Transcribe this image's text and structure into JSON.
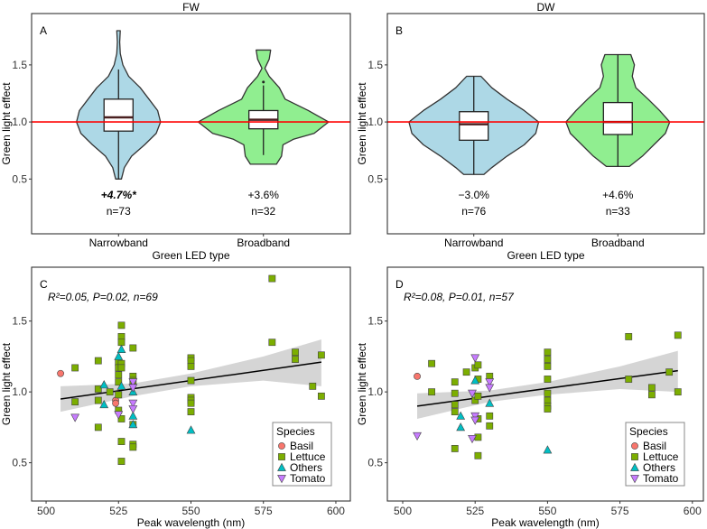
{
  "chart_data": [
    {
      "panel": "A",
      "type": "violin",
      "title": "FW",
      "panel_label": "A",
      "xlabel": "Green LED type",
      "ylabel": "Green light effect",
      "categories": [
        "Narrowband",
        "Broadband"
      ],
      "ylim": [
        0.02,
        1.95
      ],
      "yticks": [
        0.5,
        1.0,
        1.5
      ],
      "ytick_labels": [
        "0.5",
        "1.0",
        "1.5"
      ],
      "reference_line": 1.0,
      "reference_color": "#ff0000",
      "groups": [
        {
          "category": "Narrowband",
          "fill": "#add8e6",
          "annotation": "+4.7%*",
          "annotation_bold": true,
          "n_label": "n=73",
          "box": {
            "q1": 0.92,
            "median": 1.04,
            "q3": 1.2,
            "whisker_low": 0.5,
            "whisker_high": 1.46
          },
          "outliers": [],
          "density": [
            [
              0.5,
              0.02
            ],
            [
              0.6,
              0.04
            ],
            [
              0.7,
              0.09
            ],
            [
              0.8,
              0.18
            ],
            [
              0.9,
              0.26
            ],
            [
              1.0,
              0.29
            ],
            [
              1.1,
              0.27
            ],
            [
              1.2,
              0.21
            ],
            [
              1.3,
              0.15
            ],
            [
              1.4,
              0.07
            ],
            [
              1.5,
              0.03
            ],
            [
              1.6,
              0.012
            ],
            [
              1.7,
              0.008
            ],
            [
              1.8,
              0.012
            ]
          ]
        },
        {
          "category": "Broadband",
          "fill": "#90ee90",
          "annotation": "+3.6%",
          "annotation_bold": false,
          "n_label": "n=32",
          "box": {
            "q1": 0.94,
            "median": 1.02,
            "q3": 1.1,
            "whisker_low": 0.71,
            "whisker_high": 1.32
          },
          "outliers": [
            1.35
          ],
          "density": [
            [
              0.63,
              0.09
            ],
            [
              0.7,
              0.125
            ],
            [
              0.8,
              0.135
            ],
            [
              0.85,
              0.21
            ],
            [
              0.9,
              0.35
            ],
            [
              1.0,
              0.45
            ],
            [
              1.1,
              0.31
            ],
            [
              1.2,
              0.15
            ],
            [
              1.3,
              0.11
            ],
            [
              1.4,
              0.04
            ],
            [
              1.47,
              0.01
            ],
            [
              1.55,
              0.04
            ],
            [
              1.63,
              0.05
            ]
          ]
        }
      ]
    },
    {
      "panel": "B",
      "type": "violin",
      "title": "DW",
      "panel_label": "B",
      "xlabel": "Green LED type",
      "ylabel": "Green light effect",
      "categories": [
        "Narrowband",
        "Broadband"
      ],
      "ylim": [
        0.02,
        1.95
      ],
      "yticks": [
        0.5,
        1.0,
        1.5
      ],
      "ytick_labels": [
        "0.5",
        "1.0",
        "1.5"
      ],
      "reference_line": 1.0,
      "reference_color": "#ff0000",
      "groups": [
        {
          "category": "Narrowband",
          "fill": "#add8e6",
          "annotation": "−3.0%",
          "annotation_bold": false,
          "n_label": "n=76",
          "box": {
            "q1": 0.84,
            "median": 0.98,
            "q3": 1.09,
            "whisker_low": 0.54,
            "whisker_high": 1.4
          },
          "outliers": [],
          "density": [
            [
              0.54,
              0.07
            ],
            [
              0.6,
              0.125
            ],
            [
              0.7,
              0.23
            ],
            [
              0.8,
              0.35
            ],
            [
              0.9,
              0.43
            ],
            [
              1.0,
              0.45
            ],
            [
              1.1,
              0.35
            ],
            [
              1.2,
              0.23
            ],
            [
              1.3,
              0.125
            ],
            [
              1.4,
              0.05
            ]
          ]
        },
        {
          "category": "Broadband",
          "fill": "#90ee90",
          "annotation": "+4.6%",
          "annotation_bold": false,
          "n_label": "n=33",
          "box": {
            "q1": 0.89,
            "median": 1.0,
            "q3": 1.17,
            "whisker_low": 0.61,
            "whisker_high": 1.59
          },
          "outliers": [],
          "density": [
            [
              0.61,
              0.08
            ],
            [
              0.7,
              0.17
            ],
            [
              0.8,
              0.25
            ],
            [
              0.9,
              0.33
            ],
            [
              1.0,
              0.36
            ],
            [
              1.1,
              0.29
            ],
            [
              1.2,
              0.21
            ],
            [
              1.3,
              0.125
            ],
            [
              1.4,
              0.1
            ],
            [
              1.5,
              0.115
            ],
            [
              1.59,
              0.09
            ]
          ]
        }
      ]
    },
    {
      "panel": "C",
      "type": "scatter",
      "panel_label": "C",
      "stats_label": "R²=0.05, P=0.02, n=69",
      "xlabel": "Peak wavelength (nm)",
      "ylabel": "Green light effect",
      "xlim": [
        495,
        605
      ],
      "ylim": [
        0.23,
        1.88
      ],
      "xticks": [
        500,
        525,
        550,
        575,
        600
      ],
      "xtick_labels": [
        "500",
        "525",
        "550",
        "575",
        "600"
      ],
      "yticks": [
        0.5,
        1.0,
        1.5
      ],
      "ytick_labels": [
        "0.5",
        "1.0",
        "1.5"
      ],
      "legend": {
        "title": "Species",
        "position": "bottom-right"
      },
      "fit_line": [
        [
          505,
          0.95
        ],
        [
          595,
          1.21
        ]
      ],
      "confidence_band": [
        [
          505,
          0.86,
          1.04
        ],
        [
          530,
          0.97,
          1.06
        ],
        [
          550,
          1.04,
          1.13
        ],
        [
          575,
          1.08,
          1.25
        ],
        [
          595,
          1.04,
          1.37
        ]
      ],
      "series": [
        {
          "name": "Basil",
          "shape": "circle",
          "color": "#f8766d",
          "points": [
            [
              505,
              1.13
            ],
            [
              524,
              0.94
            ],
            [
              524,
              0.92
            ]
          ]
        },
        {
          "name": "Lettuce",
          "shape": "square",
          "color": "#7cae00",
          "points": [
            [
              510,
              1.17
            ],
            [
              510,
              0.93
            ],
            [
              518,
              1.22
            ],
            [
              518,
              1.02
            ],
            [
              518,
              0.94
            ],
            [
              518,
              0.75
            ],
            [
              522,
              1.0
            ],
            [
              525,
              1.21
            ],
            [
              525,
              1.17
            ],
            [
              525,
              1.12
            ],
            [
              525,
              1.07
            ],
            [
              525,
              0.98
            ],
            [
              525,
              0.87
            ],
            [
              526,
              1.47
            ],
            [
              526,
              1.39
            ],
            [
              526,
              1.35
            ],
            [
              526,
              1.2
            ],
            [
              526,
              1.17
            ],
            [
              526,
              0.81
            ],
            [
              526,
              0.65
            ],
            [
              526,
              0.51
            ],
            [
              530,
              1.31
            ],
            [
              530,
              1.11
            ],
            [
              530,
              1.08
            ],
            [
              530,
              0.77
            ],
            [
              530,
              0.63
            ],
            [
              530,
              0.61
            ],
            [
              550,
              1.24
            ],
            [
              550,
              1.22
            ],
            [
              550,
              1.18
            ],
            [
              550,
              1.08
            ],
            [
              550,
              0.96
            ],
            [
              550,
              0.94
            ],
            [
              550,
              0.92
            ],
            [
              550,
              0.86
            ],
            [
              578,
              1.8
            ],
            [
              578,
              1.35
            ],
            [
              586,
              1.28
            ],
            [
              586,
              1.23
            ],
            [
              592,
              1.04
            ],
            [
              595,
              1.26
            ],
            [
              595,
              0.97
            ]
          ]
        },
        {
          "name": "Others",
          "shape": "triangle-up",
          "color": "#00bfc4",
          "points": [
            [
              520,
              1.05
            ],
            [
              520,
              0.91
            ],
            [
              525,
              1.25
            ],
            [
              526,
              1.3
            ],
            [
              526,
              1.04
            ],
            [
              530,
              1.0
            ],
            [
              530,
              0.83
            ],
            [
              530,
              0.77
            ],
            [
              550,
              0.73
            ]
          ]
        },
        {
          "name": "Tomato",
          "shape": "triangle-down",
          "color": "#c77cff",
          "points": [
            [
              510,
              0.82
            ],
            [
              525,
              0.84
            ],
            [
              530,
              1.07
            ],
            [
              530,
              1.03
            ],
            [
              530,
              0.92
            ],
            [
              530,
              0.88
            ]
          ]
        }
      ]
    },
    {
      "panel": "D",
      "type": "scatter",
      "panel_label": "D",
      "stats_label": "R²=0.08, P=0.01, n=57",
      "xlabel": "Peak wavelength (nm)",
      "ylabel": "Green light effect",
      "xlim": [
        494.7,
        603.8
      ],
      "ylim": [
        0.23,
        1.88
      ],
      "xticks": [
        500,
        525,
        550,
        575,
        600
      ],
      "xtick_labels": [
        "500",
        "525",
        "550",
        "575",
        "600"
      ],
      "yticks": [
        0.5,
        1.0,
        1.5
      ],
      "ytick_labels": [
        "0.5",
        "1.0",
        "1.5"
      ],
      "legend": {
        "title": "Species",
        "position": "bottom-right"
      },
      "fit_line": [
        [
          505,
          0.9
        ],
        [
          595,
          1.15
        ]
      ],
      "confidence_band": [
        [
          505,
          0.81,
          0.99
        ],
        [
          530,
          0.93,
          1.01
        ],
        [
          550,
          0.98,
          1.07
        ],
        [
          575,
          1.02,
          1.18
        ],
        [
          595,
          1.0,
          1.29
        ]
      ],
      "series": [
        {
          "name": "Basil",
          "shape": "circle",
          "color": "#f8766d",
          "points": [
            [
              505,
              1.11
            ]
          ]
        },
        {
          "name": "Lettuce",
          "shape": "square",
          "color": "#7cae00",
          "points": [
            [
              510,
              1.2
            ],
            [
              510,
              1.0
            ],
            [
              518,
              1.07
            ],
            [
              518,
              0.99
            ],
            [
              518,
              0.91
            ],
            [
              518,
              0.86
            ],
            [
              518,
              0.6
            ],
            [
              522,
              1.14
            ],
            [
              525,
              1.17
            ],
            [
              525,
              0.94
            ],
            [
              526,
              1.19
            ],
            [
              526,
              1.09
            ],
            [
              526,
              0.97
            ],
            [
              526,
              0.81
            ],
            [
              526,
              0.68
            ],
            [
              526,
              0.55
            ],
            [
              530,
              1.11
            ],
            [
              530,
              0.83
            ],
            [
              530,
              0.76
            ],
            [
              550,
              1.28
            ],
            [
              550,
              1.23
            ],
            [
              550,
              1.18
            ],
            [
              550,
              1.09
            ],
            [
              550,
              0.99
            ],
            [
              550,
              0.94
            ],
            [
              550,
              0.9
            ],
            [
              550,
              0.88
            ],
            [
              578,
              1.39
            ],
            [
              578,
              1.09
            ],
            [
              586,
              1.03
            ],
            [
              586,
              0.98
            ],
            [
              592,
              1.14
            ],
            [
              595,
              1.4
            ],
            [
              595,
              1.0
            ]
          ]
        },
        {
          "name": "Others",
          "shape": "triangle-up",
          "color": "#00bfc4",
          "points": [
            [
              520,
              0.83
            ],
            [
              520,
              0.75
            ],
            [
              525,
              1.08
            ],
            [
              530,
              0.92
            ],
            [
              550,
              0.59
            ]
          ]
        },
        {
          "name": "Tomato",
          "shape": "triangle-down",
          "color": "#c77cff",
          "points": [
            [
              505,
              0.69
            ],
            [
              524,
              0.99
            ],
            [
              524,
              0.67
            ],
            [
              525,
              1.24
            ],
            [
              525,
              0.83
            ],
            [
              525,
              0.8
            ],
            [
              530,
              1.07
            ],
            [
              530,
              1.03
            ]
          ]
        }
      ]
    }
  ]
}
